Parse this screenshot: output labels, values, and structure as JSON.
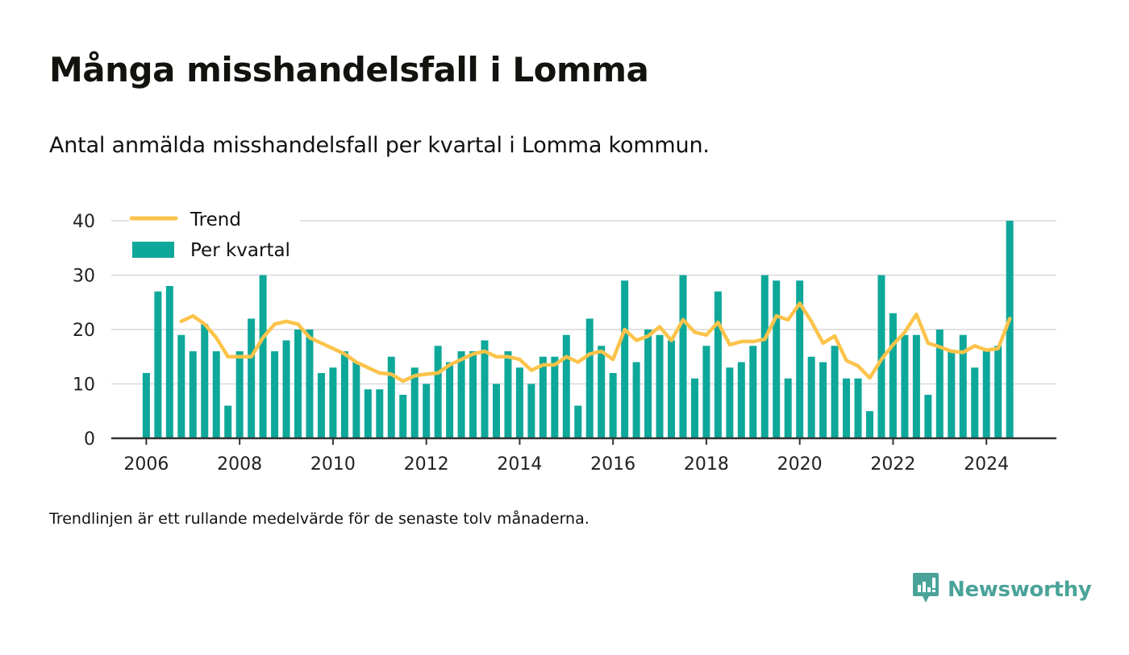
{
  "header": {
    "title": "Många misshandelsfall i Lomma",
    "subtitle": "Antal anmälda misshandelsfall per kvartal i Lomma kommun."
  },
  "footer": {
    "note": "Trendlinjen är ett rullande medelvärde för de senaste tolv månaderna.",
    "brand": "Newsworthy"
  },
  "colors": {
    "bar": "#0ea89a",
    "trend": "#fcc34a",
    "grid": "#d9d9d9",
    "axis": "#333333",
    "brand": "#4aa399"
  },
  "icons": {
    "brand_logo": "newsworthy-logo-icon"
  },
  "chart_data": {
    "type": "bar",
    "legend_position": "top-left",
    "grid": true,
    "ylim": [
      0,
      40
    ],
    "yticks": [
      0,
      10,
      20,
      30,
      40
    ],
    "xticks": [
      "2006",
      "2008",
      "2010",
      "2012",
      "2014",
      "2016",
      "2018",
      "2020",
      "2022",
      "2024"
    ],
    "xlim": [
      "2005-Q2",
      "2025-Q3"
    ],
    "categories": [
      "2006-Q1",
      "2006-Q2",
      "2006-Q3",
      "2006-Q4",
      "2007-Q1",
      "2007-Q2",
      "2007-Q3",
      "2007-Q4",
      "2008-Q1",
      "2008-Q2",
      "2008-Q3",
      "2008-Q4",
      "2009-Q1",
      "2009-Q2",
      "2009-Q3",
      "2009-Q4",
      "2010-Q1",
      "2010-Q2",
      "2010-Q3",
      "2010-Q4",
      "2011-Q1",
      "2011-Q2",
      "2011-Q3",
      "2011-Q4",
      "2012-Q1",
      "2012-Q2",
      "2012-Q3",
      "2012-Q4",
      "2013-Q1",
      "2013-Q2",
      "2013-Q3",
      "2013-Q4",
      "2014-Q1",
      "2014-Q2",
      "2014-Q3",
      "2014-Q4",
      "2015-Q1",
      "2015-Q2",
      "2015-Q3",
      "2015-Q4",
      "2016-Q1",
      "2016-Q2",
      "2016-Q3",
      "2016-Q4",
      "2017-Q1",
      "2017-Q2",
      "2017-Q3",
      "2017-Q4",
      "2018-Q1",
      "2018-Q2",
      "2018-Q3",
      "2018-Q4",
      "2019-Q1",
      "2019-Q2",
      "2019-Q3",
      "2019-Q4",
      "2020-Q1",
      "2020-Q2",
      "2020-Q3",
      "2020-Q4",
      "2021-Q1",
      "2021-Q2",
      "2021-Q3",
      "2021-Q4",
      "2022-Q1",
      "2022-Q2",
      "2022-Q3",
      "2022-Q4",
      "2023-Q1",
      "2023-Q2",
      "2023-Q3",
      "2023-Q4",
      "2024-Q1",
      "2024-Q2",
      "2024-Q3"
    ],
    "series": [
      {
        "name": "Per kvartal",
        "kind": "bar",
        "values": [
          12,
          27,
          28,
          19,
          16,
          21,
          16,
          6,
          16,
          22,
          30,
          16,
          18,
          20,
          20,
          12,
          13,
          16,
          14,
          9,
          9,
          15,
          8,
          13,
          10,
          17,
          14,
          16,
          16,
          18,
          10,
          16,
          13,
          10,
          15,
          15,
          19,
          6,
          22,
          17,
          12,
          29,
          14,
          20,
          19,
          18,
          30,
          11,
          17,
          27,
          13,
          14,
          17,
          30,
          29,
          11,
          29,
          15,
          14,
          17,
          11,
          11,
          5,
          30,
          23,
          19,
          19,
          8,
          20,
          16,
          19,
          13,
          16,
          17,
          40
        ]
      },
      {
        "name": "Trend",
        "kind": "line",
        "values": [
          null,
          null,
          null,
          21.5,
          22.5,
          21,
          18.5,
          15,
          15,
          15,
          18.5,
          21,
          21.5,
          21,
          18.5,
          17.5,
          16.5,
          15.5,
          14,
          13,
          12,
          11.8,
          10.5,
          11.5,
          11.8,
          12,
          13.5,
          14.5,
          15.5,
          16,
          15,
          15,
          14.5,
          12.5,
          13.5,
          13.5,
          15,
          14,
          15.5,
          16,
          14.5,
          20,
          18,
          18.8,
          20.5,
          18,
          21.8,
          19.5,
          19,
          21.3,
          17.2,
          17.8,
          17.8,
          18.2,
          22.5,
          21.8,
          24.8,
          21.5,
          17.5,
          18.8,
          14.3,
          13.3,
          11.1,
          14.5,
          17.2,
          19.5,
          22.8,
          17.5,
          16.8,
          16,
          15.8,
          17,
          16.2,
          16.5,
          22
        ]
      }
    ]
  }
}
